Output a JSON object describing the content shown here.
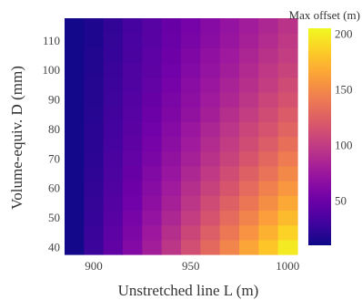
{
  "chart_data": {
    "type": "heatmap",
    "title": "",
    "xlabel": "Unstretched line L (m)",
    "ylabel": "Volume-equiv. D (mm)",
    "x": [
      890,
      900,
      910,
      920,
      930,
      940,
      950,
      960,
      970,
      980,
      990,
      1000
    ],
    "y": [
      40,
      45,
      50,
      55,
      60,
      65,
      70,
      75,
      80,
      85,
      90,
      95,
      100,
      105,
      110,
      115
    ],
    "x_ticks": [
      "900",
      "950",
      "1000"
    ],
    "y_ticks": [
      "40",
      "50",
      "60",
      "70",
      "80",
      "90",
      "100",
      "110"
    ],
    "colorbar": {
      "title": "Max offset (m)",
      "range": [
        10,
        205
      ],
      "ticks": [
        "50",
        "100",
        "150",
        "200"
      ],
      "colorscale": "plasma"
    },
    "z": [
      [
        12,
        28,
        45,
        62,
        79,
        96,
        113,
        130,
        147,
        164,
        181,
        198
      ],
      [
        12,
        27,
        43,
        59,
        75,
        91,
        107,
        123,
        139,
        155,
        171,
        187
      ],
      [
        12,
        26,
        41,
        56,
        71,
        86,
        101,
        116,
        131,
        146,
        161,
        176
      ],
      [
        12,
        25,
        39,
        53,
        67,
        81,
        96,
        110,
        124,
        138,
        152,
        166
      ],
      [
        12,
        24,
        37,
        51,
        64,
        77,
        91,
        104,
        117,
        131,
        144,
        157
      ],
      [
        12,
        23,
        35,
        48,
        61,
        73,
        86,
        98,
        111,
        124,
        136,
        149
      ],
      [
        12,
        22,
        34,
        46,
        58,
        70,
        81,
        93,
        105,
        117,
        129,
        141
      ],
      [
        12,
        21,
        32,
        44,
        55,
        66,
        77,
        89,
        100,
        111,
        122,
        134
      ],
      [
        12,
        21,
        31,
        42,
        53,
        63,
        74,
        85,
        95,
        106,
        116,
        127
      ],
      [
        12,
        20,
        30,
        40,
        50,
        60,
        70,
        80,
        91,
        101,
        111,
        121
      ],
      [
        12,
        19,
        29,
        39,
        48,
        58,
        67,
        77,
        86,
        96,
        106,
        115
      ],
      [
        12,
        19,
        28,
        37,
        46,
        55,
        65,
        74,
        83,
        92,
        101,
        110
      ],
      [
        12,
        18,
        27,
        36,
        44,
        53,
        62,
        71,
        79,
        88,
        97,
        105
      ],
      [
        12,
        18,
        26,
        34,
        43,
        51,
        60,
        68,
        76,
        85,
        93,
        101
      ],
      [
        12,
        17,
        25,
        33,
        41,
        49,
        57,
        65,
        73,
        81,
        89,
        97
      ],
      [
        12,
        17,
        24,
        32,
        40,
        48,
        55,
        63,
        71,
        78,
        86,
        94
      ]
    ]
  }
}
